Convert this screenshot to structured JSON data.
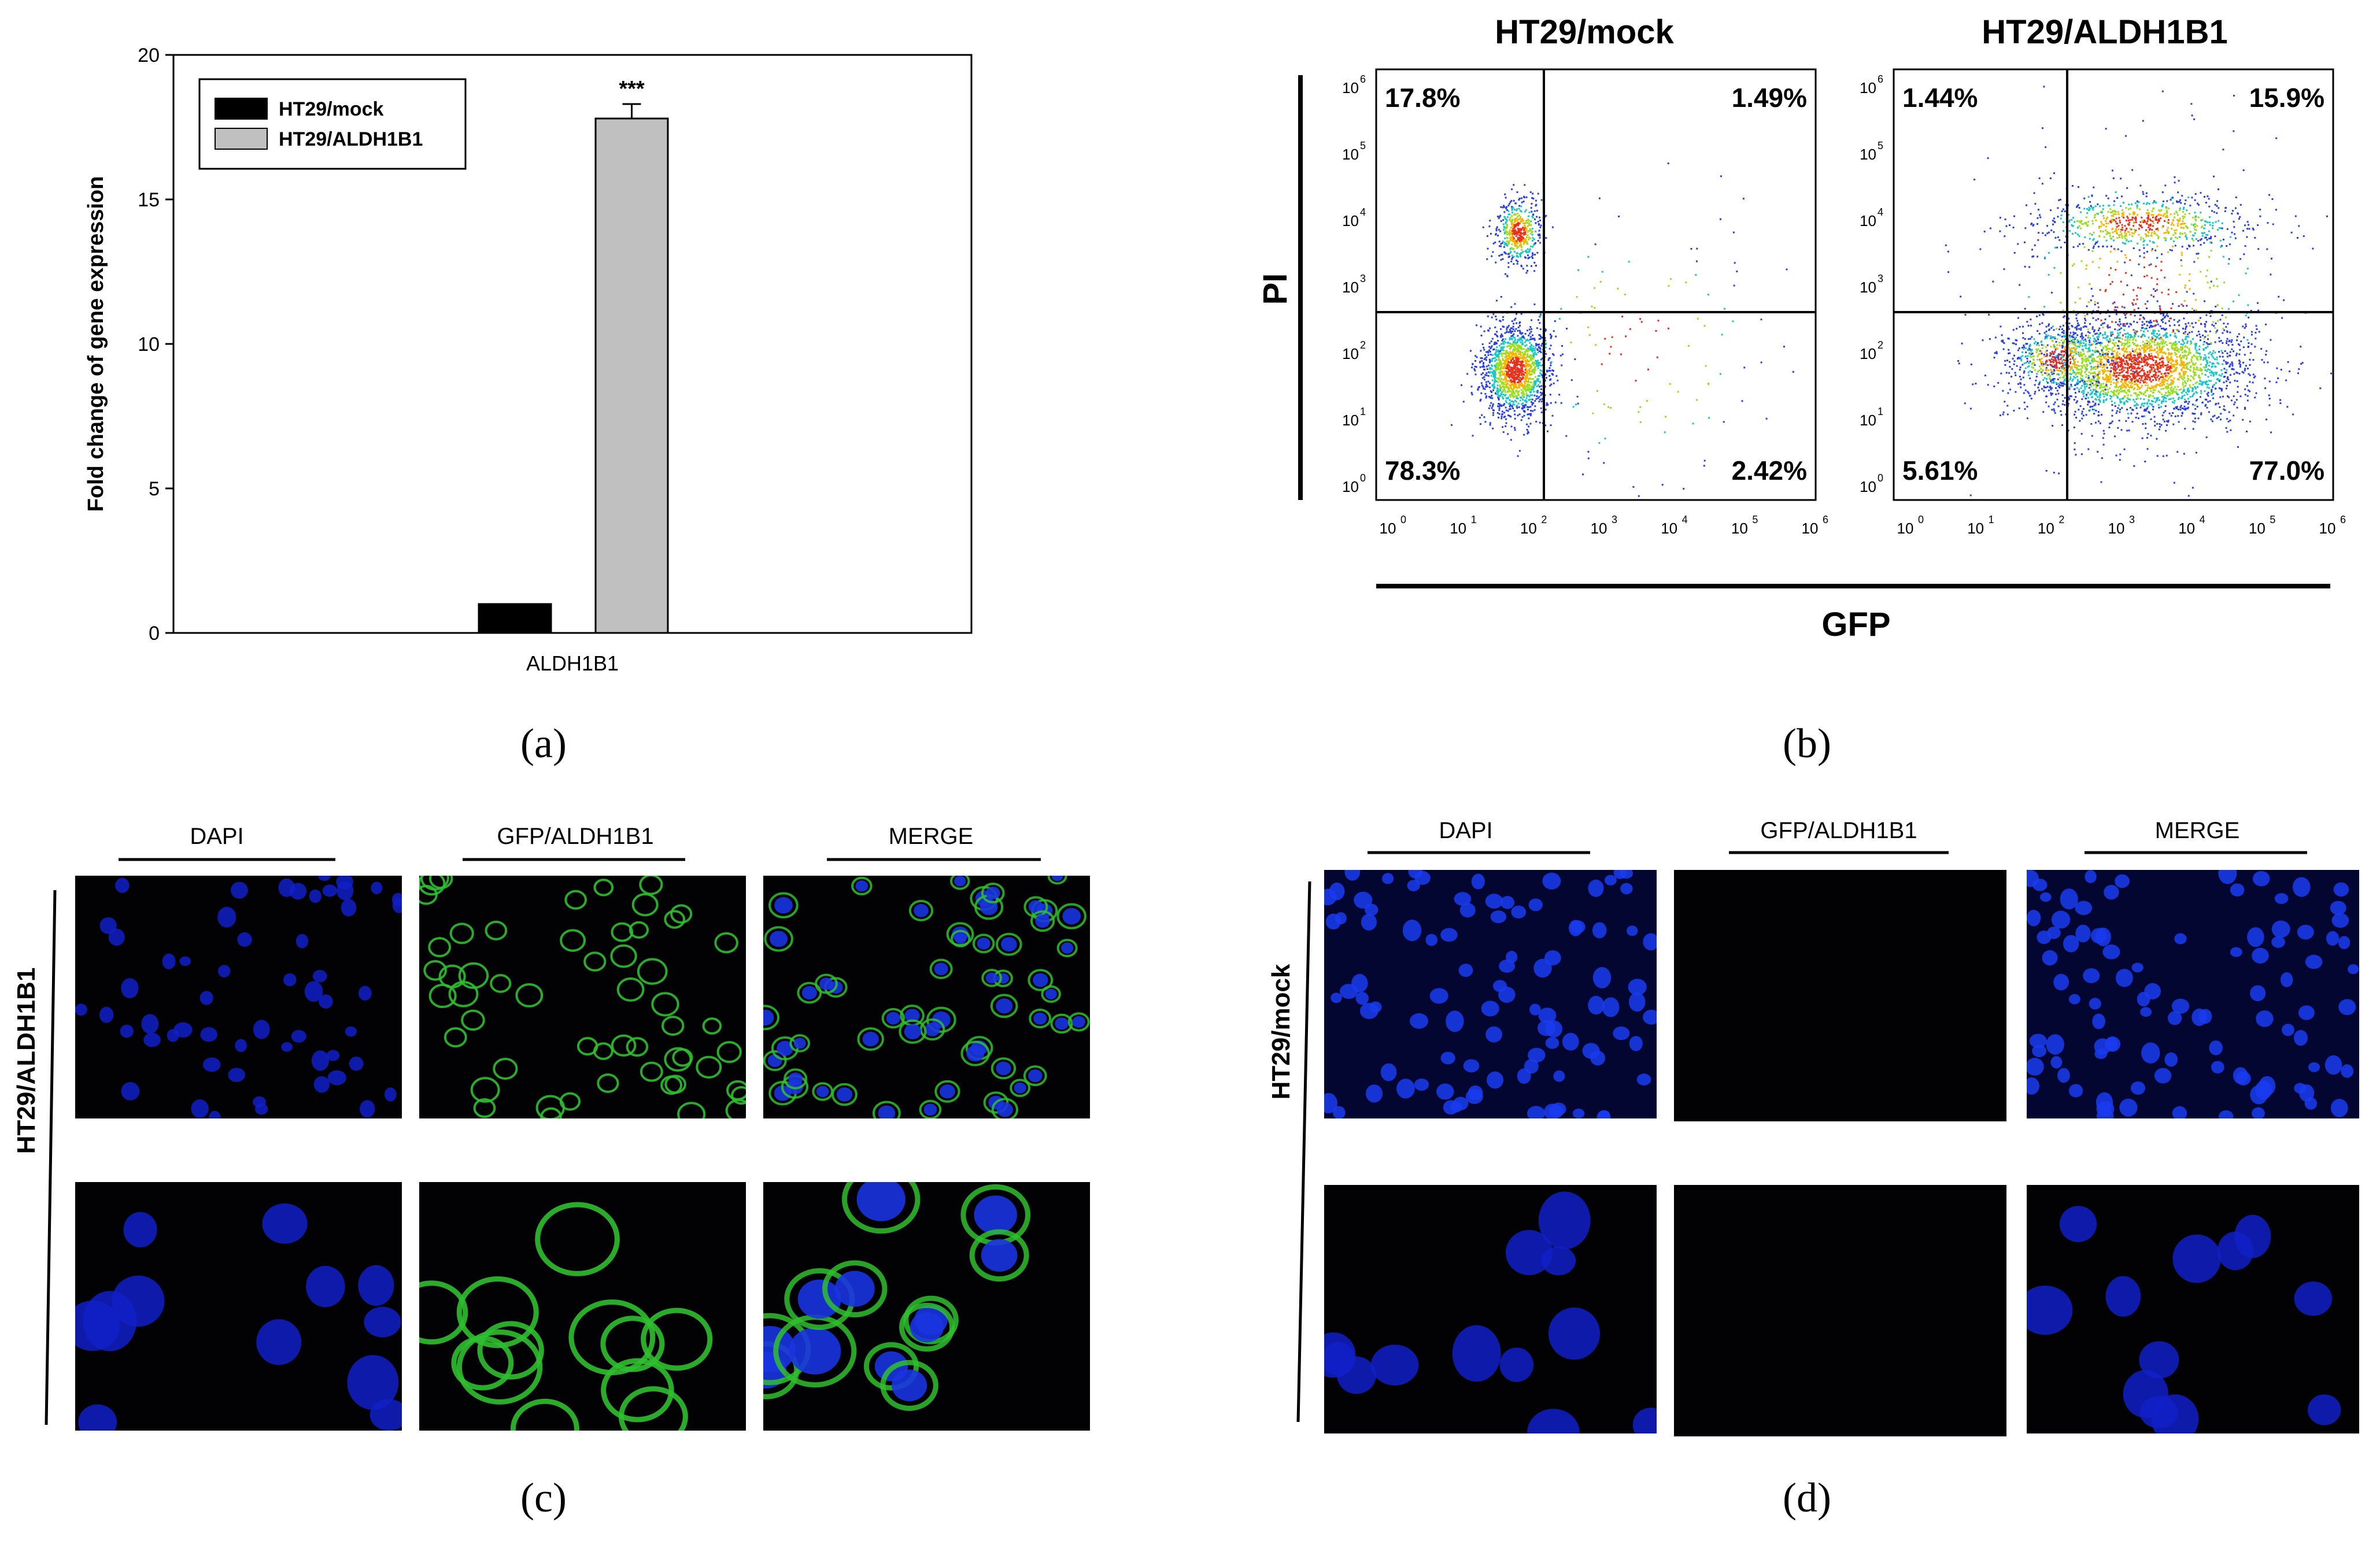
{
  "panels": {
    "a": {
      "caption": "(a)",
      "chart_data": {
        "type": "bar",
        "categories": [
          "ALDH1B1"
        ],
        "series": [
          {
            "name": "HT29/mock",
            "values": [
              1.0
            ],
            "color": "#000000"
          },
          {
            "name": "HT29/ALDH1B1",
            "values": [
              17.8
            ],
            "error": [
              0.5
            ],
            "color": "#c0c0c0"
          }
        ],
        "ylabel": "Fold change of gene expression",
        "xlabel": "",
        "ylim": [
          0,
          20
        ],
        "yticks": [
          "0",
          "5",
          "10",
          "15",
          "20"
        ],
        "annotation": "***",
        "legend": "top-left",
        "grid": false
      }
    },
    "b": {
      "caption": "(b)",
      "chart_data": {
        "type": "scatter",
        "xlabel": "GFP",
        "ylabel": "PI",
        "scale": "log",
        "xticks": [
          "10",
          "10",
          "10",
          "10",
          "10",
          "10",
          "10"
        ],
        "tick_exponents": [
          "0",
          "1",
          "2",
          "3",
          "4",
          "5",
          "6"
        ],
        "plots": [
          {
            "title": "HT29/mock",
            "quadrants": {
              "upper_left": "17.8%",
              "upper_right": "1.49%",
              "lower_left": "78.3%",
              "lower_right": "2.42%"
            }
          },
          {
            "title": "HT29/ALDH1B1",
            "quadrants": {
              "upper_left": "1.44%",
              "upper_right": "15.9%",
              "lower_left": "5.61%",
              "lower_right": "77.0%"
            }
          }
        ]
      }
    },
    "c": {
      "caption": "(c)",
      "row_label": "HT29/ALDH1B1",
      "columns": [
        "DAPI",
        "GFP/ALDH1B1",
        "MERGE"
      ]
    },
    "d": {
      "caption": "(d)",
      "row_label": "HT29/mock",
      "columns": [
        "DAPI",
        "GFP/ALDH1B1",
        "MERGE"
      ]
    }
  }
}
